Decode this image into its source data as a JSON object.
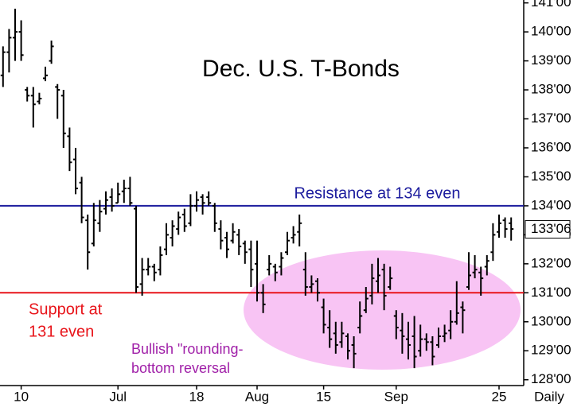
{
  "chart_data": {
    "type": "ohlc",
    "title": "Dec. U.S. T-Bonds",
    "x_label": "Daily",
    "categories": [
      null,
      null,
      null,
      "10",
      null,
      null,
      null,
      null,
      null,
      null,
      null,
      null,
      null,
      null,
      null,
      null,
      null,
      null,
      null,
      "Jul",
      null,
      null,
      null,
      null,
      null,
      null,
      null,
      null,
      null,
      null,
      null,
      null,
      "18",
      null,
      null,
      null,
      null,
      null,
      null,
      null,
      null,
      null,
      "Aug",
      null,
      null,
      null,
      null,
      null,
      null,
      null,
      null,
      null,
      null,
      "15",
      null,
      null,
      null,
      null,
      null,
      null,
      null,
      null,
      null,
      null,
      null,
      "Sep",
      null,
      null,
      null,
      null,
      null,
      null,
      null,
      null,
      null,
      null,
      null,
      null,
      null,
      null,
      null,
      null,
      "25",
      null,
      null
    ],
    "open": [
      138.5,
      139.3,
      139.8,
      140.0,
      138.0,
      137.8,
      137.6,
      138.4,
      139.0,
      138.1,
      137.8,
      136.4,
      135.6,
      134.8,
      133.5,
      132.7,
      133.4,
      133.9,
      134.3,
      134.1,
      134.5,
      134.6,
      133.9,
      131.3,
      131.8,
      131.9,
      131.8,
      132.5,
      132.9,
      133.2,
      133.7,
      133.4,
      134.0,
      134.3,
      134.3,
      134.0,
      133.2,
      132.9,
      132.8,
      133.0,
      132.7,
      132.5,
      132.0,
      131.0,
      131.8,
      131.9,
      131.9,
      132.4,
      132.9,
      133.1,
      131.8,
      131.2,
      131.4,
      130.5,
      129.8,
      129.6,
      129.3,
      129.5,
      129.2,
      129.8,
      130.4,
      130.9,
      131.4,
      131.8,
      131.2,
      130.2,
      129.7,
      129.4,
      129.5,
      129.0,
      129.4,
      129.3,
      129.2,
      129.5,
      129.7,
      130.0,
      130.5,
      131.2,
      131.7,
      131.7,
      131.9,
      132.4,
      133.1,
      133.5,
      133.4
    ],
    "high": [
      139.5,
      140.1,
      140.8,
      140.4,
      138.1,
      138.1,
      137.9,
      138.8,
      139.7,
      138.2,
      138.0,
      136.7,
      136.0,
      135.0,
      133.7,
      134.1,
      134.2,
      134.5,
      134.6,
      134.8,
      134.9,
      135.0,
      134.0,
      132.2,
      132.2,
      132.0,
      132.6,
      133.4,
      133.5,
      133.8,
      133.9,
      134.4,
      134.5,
      134.4,
      134.5,
      134.1,
      133.5,
      133.1,
      133.4,
      133.2,
      132.8,
      132.8,
      132.8,
      131.3,
      132.3,
      132.0,
      132.4,
      133.1,
      133.3,
      133.7,
      132.4,
      131.6,
      131.5,
      130.8,
      130.4,
      130.0,
      130.0,
      129.6,
      129.5,
      130.7,
      131.2,
      132.0,
      132.2,
      132.0,
      131.9,
      130.4,
      130.3,
      130.0,
      130.2,
      129.9,
      129.6,
      129.5,
      129.8,
      129.9,
      130.4,
      131.4,
      130.7,
      132.4,
      132.3,
      131.9,
      132.3,
      133.4,
      133.7,
      133.6,
      133.6
    ],
    "low": [
      138.1,
      138.6,
      139.0,
      139.0,
      137.6,
      136.7,
      137.5,
      138.3,
      138.9,
      137.0,
      136.0,
      135.2,
      134.4,
      133.4,
      131.8,
      132.6,
      133.1,
      133.7,
      133.8,
      134.1,
      134.1,
      134.0,
      131.0,
      130.9,
      131.6,
      131.4,
      131.6,
      132.3,
      132.6,
      133.0,
      133.1,
      133.3,
      133.8,
      133.7,
      134.0,
      133.1,
      132.5,
      132.2,
      132.7,
      132.3,
      132.0,
      131.2,
      130.7,
      130.3,
      131.6,
      131.4,
      131.6,
      132.3,
      132.7,
      132.6,
      130.9,
      131.0,
      130.7,
      129.6,
      129.1,
      128.9,
      129.1,
      128.7,
      128.4,
      129.6,
      130.3,
      130.6,
      131.0,
      130.4,
      131.1,
      129.4,
      128.9,
      128.7,
      128.4,
      128.8,
      129.0,
      128.5,
      129.1,
      129.3,
      129.4,
      129.9,
      129.6,
      131.1,
      131.5,
      130.9,
      131.6,
      132.1,
      132.9,
      132.9,
      132.8
    ],
    "close": [
      139.3,
      139.8,
      140.0,
      139.2,
      137.8,
      137.5,
      137.7,
      138.5,
      139.5,
      138.0,
      136.5,
      135.5,
      134.6,
      133.6,
      132.4,
      133.5,
      133.8,
      134.2,
      134.0,
      134.4,
      134.6,
      134.1,
      131.2,
      131.8,
      131.9,
      131.7,
      132.3,
      133.0,
      133.3,
      133.6,
      133.3,
      134.0,
      134.2,
      134.1,
      134.1,
      133.4,
      132.8,
      132.5,
      133.1,
      132.6,
      132.4,
      131.8,
      131.0,
      130.6,
      132.0,
      131.7,
      132.2,
      132.8,
      133.0,
      133.4,
      131.2,
      131.3,
      131.0,
      129.9,
      129.4,
      129.2,
      129.6,
      129.0,
      128.9,
      130.2,
      130.8,
      131.5,
      131.6,
      130.9,
      131.5,
      129.8,
      129.5,
      129.2,
      128.8,
      129.4,
      129.3,
      128.8,
      129.5,
      129.6,
      130.0,
      130.3,
      130.4,
      131.6,
      131.8,
      131.5,
      132.1,
      133.0,
      133.4,
      133.2,
      133.2
    ],
    "color": "#000000",
    "ylim": [
      127.8,
      141.1
    ],
    "yticks": [
      {
        "value": 128,
        "label": "128'00"
      },
      {
        "value": 129,
        "label": "129'00"
      },
      {
        "value": 130,
        "label": "130'00"
      },
      {
        "value": 131,
        "label": "131'00"
      },
      {
        "value": 132,
        "label": "132'00"
      },
      {
        "value": 133,
        "label": "133'00"
      },
      {
        "value": 134,
        "label": "134'00"
      },
      {
        "value": 135,
        "label": "135'00"
      },
      {
        "value": 136,
        "label": "136'00"
      },
      {
        "value": 137,
        "label": "137'00"
      },
      {
        "value": 138,
        "label": "138'00"
      },
      {
        "value": 139,
        "label": "139'00"
      },
      {
        "value": 140,
        "label": "140'00"
      },
      {
        "value": 141,
        "label": "141'00"
      }
    ],
    "grid": false,
    "last_price": {
      "value": 133.1875,
      "label": "133'06"
    },
    "hlines": [
      {
        "value": 134,
        "color": "#1c1c9e",
        "label": [
          "Resistance at 134 even"
        ]
      },
      {
        "value": 131,
        "color": "#e8141a",
        "label": [
          "Support at",
          "131 even"
        ]
      }
    ],
    "annotation": {
      "color": "#a020a8",
      "label": [
        "Bullish \"rounding-",
        "bottom reversal"
      ]
    }
  }
}
